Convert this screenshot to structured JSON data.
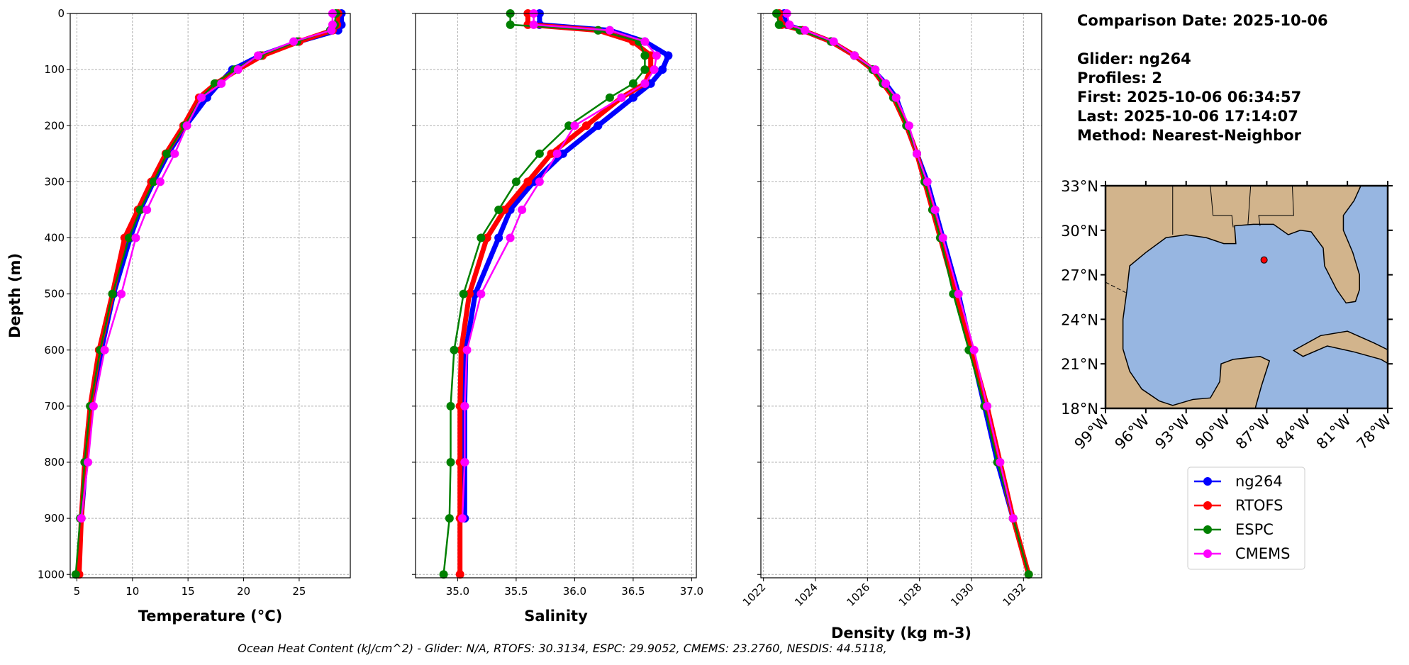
{
  "chart_data": [
    {
      "type": "line",
      "xlabel": "Temperature (°C)",
      "ylabel": "Depth (m)",
      "xlim": [
        4.4,
        29.6
      ],
      "xticks": [
        5,
        10,
        15,
        20,
        25
      ],
      "ylim": [
        0,
        1006
      ],
      "yticks": [
        0,
        100,
        200,
        300,
        400,
        500,
        600,
        700,
        800,
        900,
        1000
      ],
      "ytick_labels": true,
      "grid": true,
      "series": [
        {
          "name": "ng264",
          "color": "#0000ff",
          "linewidth": 7,
          "depth": [
            0,
            20,
            30,
            50,
            75,
            100,
            125,
            150,
            200,
            250,
            300,
            350,
            400,
            500,
            600,
            700,
            800,
            900
          ],
          "values": [
            28.8,
            28.8,
            28.5,
            25,
            21.5,
            19,
            17.8,
            16.7,
            14.8,
            13.2,
            11.9,
            10.7,
            9.8,
            8.3,
            7.2,
            6.3,
            5.8,
            5.4
          ]
        },
        {
          "name": "RTOFS",
          "color": "#ff0000",
          "linewidth": 7,
          "depth": [
            0,
            20,
            30,
            50,
            75,
            100,
            125,
            150,
            200,
            250,
            300,
            350,
            400,
            500,
            600,
            700,
            800,
            900,
            1000
          ],
          "values": [
            28.5,
            28.4,
            28,
            25,
            21.7,
            19.5,
            17.5,
            16,
            14.6,
            13,
            11.7,
            10.5,
            9.3,
            8.2,
            7,
            6.2,
            5.7,
            5.4,
            5.2
          ]
        },
        {
          "name": "ESPC",
          "color": "#008000",
          "linewidth": 2.5,
          "depth": [
            0,
            20,
            30,
            50,
            75,
            100,
            125,
            150,
            200,
            250,
            300,
            350,
            400,
            500,
            600,
            700,
            800,
            900,
            1000
          ],
          "values": [
            28.3,
            28.2,
            27.8,
            24.8,
            21.5,
            19.2,
            17.4,
            16.2,
            14.7,
            13.1,
            11.9,
            10.7,
            9.7,
            8.2,
            7.1,
            6.2,
            5.7,
            5.3,
            4.9
          ]
        },
        {
          "name": "CMEMS",
          "color": "#ff00ff",
          "linewidth": 2.5,
          "depth": [
            0,
            20,
            30,
            50,
            75,
            100,
            125,
            150,
            200,
            250,
            300,
            350,
            400,
            500,
            600,
            700,
            800,
            900
          ],
          "values": [
            28,
            28,
            27.9,
            24.5,
            21.3,
            19.5,
            18,
            16.2,
            14.9,
            13.8,
            12.5,
            11.3,
            10.3,
            9,
            7.5,
            6.5,
            6,
            5.4
          ]
        }
      ]
    },
    {
      "type": "line",
      "xlabel": "Salinity",
      "xlim": [
        34.64,
        37.04
      ],
      "xticks": [
        {
          "value": 35,
          "label": "35.0"
        },
        35.5,
        {
          "value": 36,
          "label": "36.0"
        },
        36.5,
        {
          "value": 37,
          "label": "37.0"
        }
      ],
      "ylim": [
        0,
        1006
      ],
      "yticks": [
        0,
        100,
        200,
        300,
        400,
        500,
        600,
        700,
        800,
        900,
        1000
      ],
      "ytick_labels": false,
      "grid": true,
      "series": [
        {
          "color": "#0000ff",
          "linewidth": 7,
          "depth": [
            0,
            20,
            30,
            50,
            75,
            100,
            125,
            150,
            200,
            250,
            300,
            350,
            400,
            500,
            600,
            700,
            800,
            900
          ],
          "values": [
            35.7,
            35.7,
            36.3,
            36.6,
            36.8,
            36.75,
            36.65,
            36.5,
            36.2,
            35.9,
            35.65,
            35.45,
            35.35,
            35.15,
            35.07,
            35.06,
            35.06,
            35.06
          ]
        },
        {
          "color": "#ff0000",
          "linewidth": 7,
          "depth": [
            0,
            20,
            30,
            50,
            75,
            100,
            125,
            150,
            200,
            250,
            300,
            350,
            400,
            500,
            600,
            700,
            800,
            900,
            1000
          ],
          "values": [
            35.6,
            35.6,
            36.2,
            36.5,
            36.65,
            36.65,
            36.6,
            36.4,
            36.1,
            35.8,
            35.6,
            35.4,
            35.25,
            35.1,
            35.03,
            35.02,
            35.02,
            35.02,
            35.02
          ]
        },
        {
          "color": "#008000",
          "linewidth": 2.5,
          "depth": [
            0,
            20,
            30,
            50,
            75,
            100,
            125,
            150,
            200,
            250,
            300,
            350,
            400,
            500,
            600,
            700,
            800,
            900,
            1000
          ],
          "values": [
            35.45,
            35.45,
            36.2,
            36.55,
            36.6,
            36.6,
            36.5,
            36.3,
            35.95,
            35.7,
            35.5,
            35.35,
            35.2,
            35.05,
            34.97,
            34.94,
            34.94,
            34.93,
            34.88
          ]
        },
        {
          "color": "#ff00ff",
          "linewidth": 2.5,
          "depth": [
            0,
            20,
            30,
            50,
            75,
            100,
            125,
            150,
            200,
            250,
            300,
            350,
            400,
            500,
            600,
            700,
            800,
            900
          ],
          "values": [
            35.65,
            35.65,
            36.3,
            36.6,
            36.7,
            36.68,
            36.6,
            36.4,
            36,
            35.85,
            35.7,
            35.55,
            35.45,
            35.2,
            35.08,
            35.06,
            35.06,
            35.04
          ]
        }
      ]
    },
    {
      "type": "line",
      "xlabel": "Density (kg m-3)",
      "xlim": [
        1021.9,
        1032.7
      ],
      "xticks": [
        1022,
        1024,
        1026,
        1028,
        1030,
        1032
      ],
      "xtick_rotation": 45,
      "ylim": [
        0,
        1006
      ],
      "yticks": [
        0,
        100,
        200,
        300,
        400,
        500,
        600,
        700,
        800,
        900,
        1000
      ],
      "ytick_labels": false,
      "grid": true,
      "series": [
        {
          "color": "#0000ff",
          "linewidth": 7,
          "depth": [
            0,
            20,
            30,
            50,
            75,
            100,
            125,
            150,
            200,
            250,
            300,
            350,
            400,
            500,
            600,
            700,
            800,
            900
          ],
          "values": [
            1022.8,
            1022.9,
            1023.5,
            1024.6,
            1025.5,
            1026.2,
            1026.7,
            1027.1,
            1027.5,
            1027.9,
            1028.3,
            1028.6,
            1028.9,
            1029.5,
            1030,
            1030.5,
            1031,
            1031.6
          ]
        },
        {
          "color": "#ff0000",
          "linewidth": 7,
          "depth": [
            0,
            20,
            30,
            50,
            75,
            100,
            125,
            150,
            200,
            250,
            300,
            350,
            400,
            500,
            600,
            700,
            800,
            900,
            1000
          ],
          "values": [
            1022.6,
            1022.7,
            1023.5,
            1024.6,
            1025.5,
            1026.2,
            1026.6,
            1027,
            1027.5,
            1027.9,
            1028.2,
            1028.5,
            1028.8,
            1029.4,
            1030,
            1030.6,
            1031.1,
            1031.6,
            1032.2
          ]
        },
        {
          "color": "#008000",
          "linewidth": 2.5,
          "depth": [
            0,
            20,
            30,
            50,
            75,
            100,
            125,
            150,
            200,
            250,
            300,
            350,
            400,
            500,
            600,
            700,
            800,
            900,
            1000
          ],
          "values": [
            1022.5,
            1022.6,
            1023.4,
            1024.6,
            1025.5,
            1026.2,
            1026.6,
            1027,
            1027.5,
            1027.9,
            1028.2,
            1028.5,
            1028.8,
            1029.3,
            1029.9,
            1030.5,
            1031,
            1031.6,
            1032.2
          ]
        },
        {
          "color": "#ff00ff",
          "linewidth": 2.5,
          "depth": [
            0,
            20,
            30,
            50,
            75,
            100,
            125,
            150,
            200,
            250,
            300,
            350,
            400,
            500,
            600,
            700,
            800,
            900
          ],
          "values": [
            1022.9,
            1023,
            1023.6,
            1024.7,
            1025.5,
            1026.3,
            1026.7,
            1027.1,
            1027.6,
            1027.9,
            1028.3,
            1028.6,
            1028.9,
            1029.5,
            1030.1,
            1030.6,
            1031.1,
            1031.6
          ]
        }
      ]
    },
    {
      "type": "map",
      "xlim": [
        -99,
        -78
      ],
      "ylim": [
        18,
        33
      ],
      "xticks": [
        {
          "value": -99,
          "label": "99°W"
        },
        {
          "value": -96,
          "label": "96°W"
        },
        {
          "value": -93,
          "label": "93°W"
        },
        {
          "value": -90,
          "label": "90°W"
        },
        {
          "value": -87,
          "label": "87°W"
        },
        {
          "value": -84,
          "label": "84°W"
        },
        {
          "value": -81,
          "label": "81°W"
        },
        {
          "value": -78,
          "label": "78°W"
        }
      ],
      "yticks": [
        {
          "value": 18,
          "label": "18°N"
        },
        {
          "value": 21,
          "label": "21°N"
        },
        {
          "value": 24,
          "label": "24°N"
        },
        {
          "value": 27,
          "label": "27°N"
        },
        {
          "value": 30,
          "label": "30°N"
        },
        {
          "value": 33,
          "label": "33°N"
        }
      ],
      "marker": {
        "lon": -87.2,
        "lat": 28,
        "color": "#ff0000"
      }
    }
  ],
  "info": {
    "comparison": "Comparison Date: 2025-10-06",
    "lines": [
      "Glider: ng264",
      "Profiles: 2",
      "First: 2025-10-06 06:34:57",
      "Last: 2025-10-06 17:14:07",
      "Method: Nearest-Neighbor"
    ]
  },
  "footer": "Ocean Heat Content (kJ/cm^2) - Glider: N/A,  RTOFS: 30.3134,  ESPC: 29.9052,  CMEMS: 23.2760,  NESDIS: 44.5118,"
}
